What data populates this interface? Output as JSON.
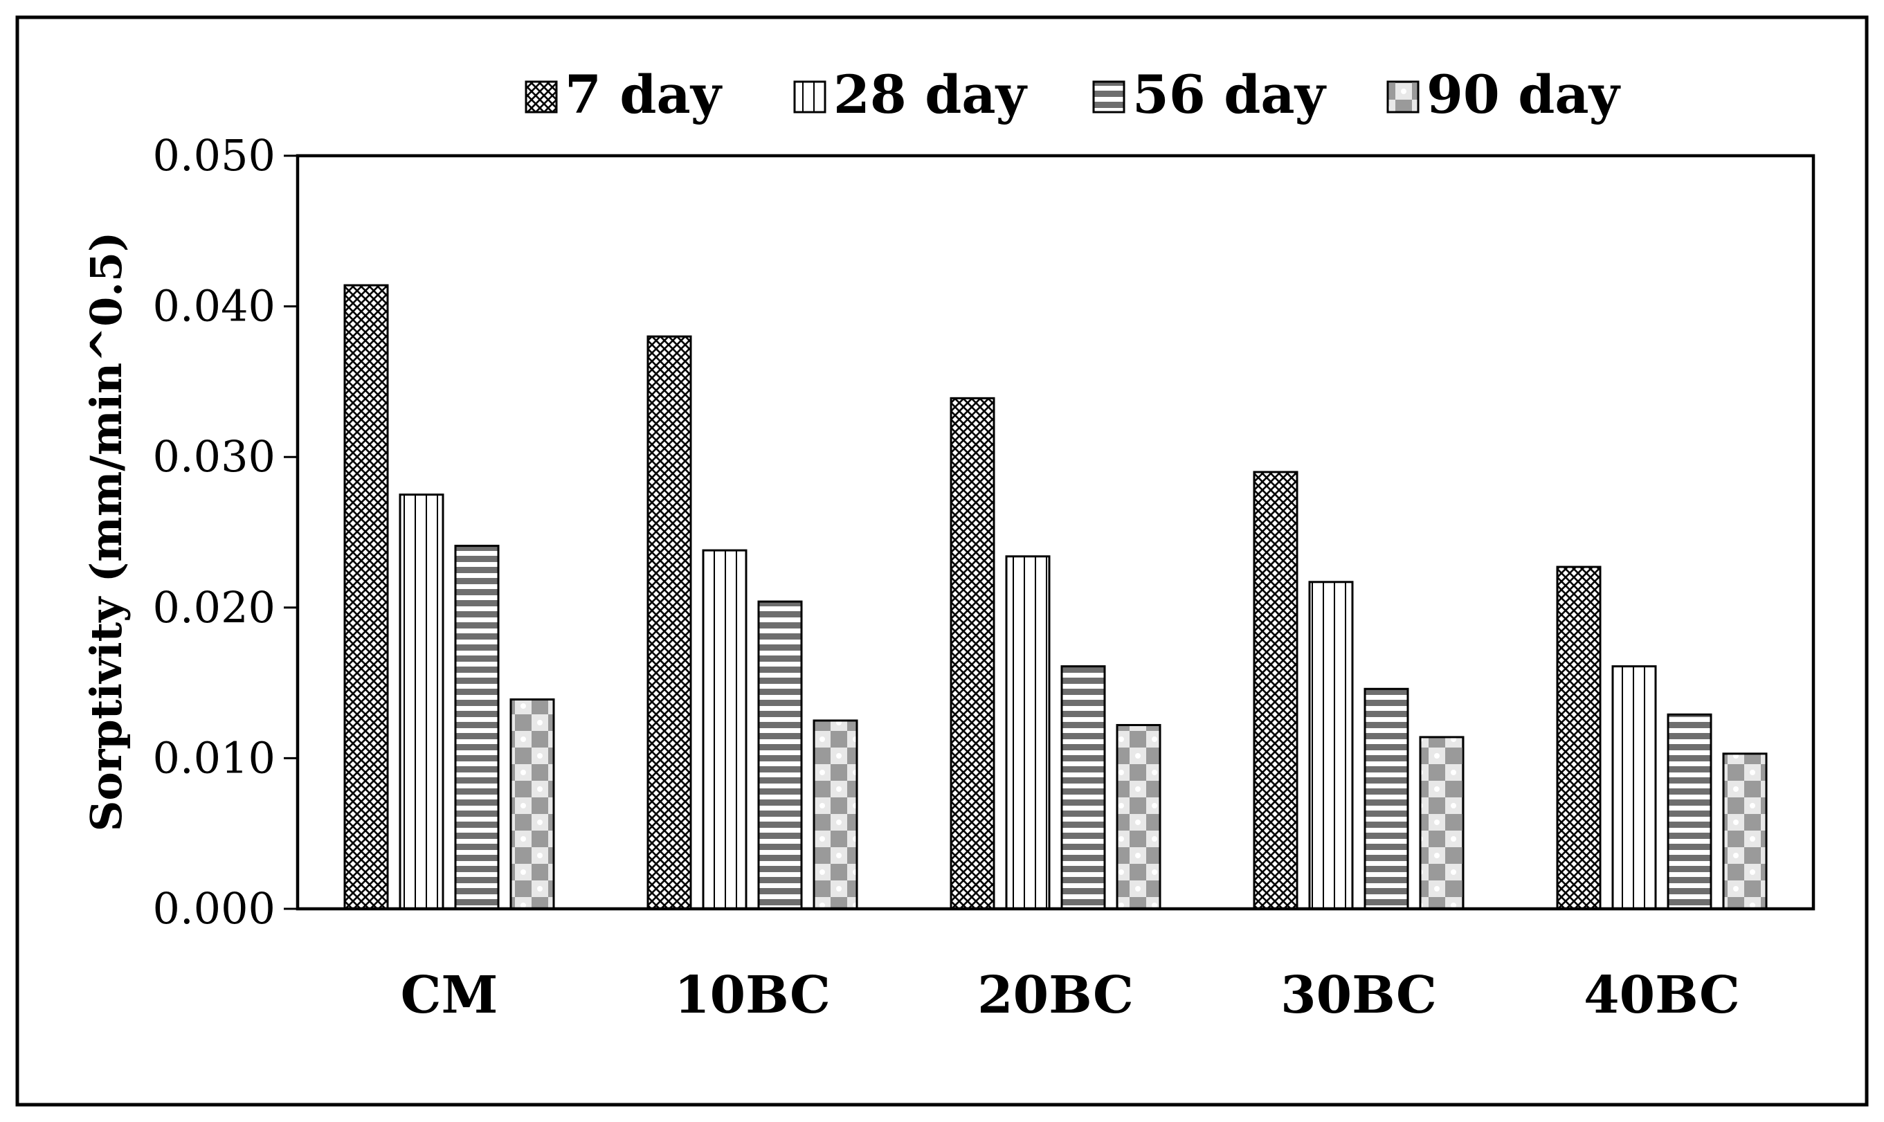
{
  "chart_data": {
    "type": "bar",
    "title": "",
    "xlabel": "",
    "ylabel": "Sorptivity (mm/min^0.5)",
    "ylim": [
      0,
      0.05
    ],
    "yticks": [
      "0.000",
      "0.010",
      "0.020",
      "0.030",
      "0.040",
      "0.050"
    ],
    "categories": [
      "CM",
      "10BC",
      "20BC",
      "30BC",
      "40BC"
    ],
    "legend_position": "top",
    "grid": false,
    "series": [
      {
        "name": "7 day",
        "pattern": "crosshatch",
        "values": [
          0.0414,
          0.038,
          0.0339,
          0.029,
          0.0227
        ]
      },
      {
        "name": "28 day",
        "pattern": "vertical",
        "values": [
          0.0275,
          0.0238,
          0.0234,
          0.0217,
          0.0161
        ]
      },
      {
        "name": "56 day",
        "pattern": "horizontal",
        "values": [
          0.0241,
          0.0204,
          0.0161,
          0.0146,
          0.0129
        ]
      },
      {
        "name": "90 day",
        "pattern": "checker",
        "values": [
          0.0139,
          0.0125,
          0.0122,
          0.0114,
          0.0103
        ]
      }
    ]
  }
}
